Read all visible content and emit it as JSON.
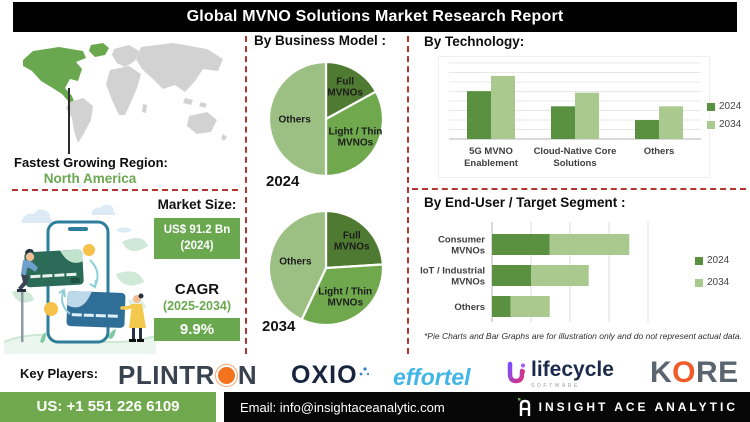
{
  "title": "Global MVNO Solutions Market Research Report",
  "left_panel": {
    "fastest_growing_label": "Fastest Growing Region:",
    "fastest_growing_value": "North America",
    "market_size": {
      "label": "Market Size:",
      "value": "US$ 91.2 Bn",
      "year": "(2024)"
    },
    "cagr": {
      "label": "CAGR",
      "period": "(2025-2034)",
      "value": "9.9%"
    }
  },
  "sections": {
    "business_model_heading": "By Business Model :",
    "technology_heading": "By Technology:",
    "end_user_heading": "By End-User / Target Segment :",
    "footnote": "*Pie Charts and Bar Graphs are for illustration only and do not represent actual data."
  },
  "chart_data": [
    {
      "id": "business_model_2024",
      "type": "pie",
      "title": "2024",
      "labels": [
        "Full MVNOs",
        "Light / Thin MVNOs",
        "Others"
      ],
      "label_lines": [
        [
          "Full",
          "MVNOs"
        ],
        [
          "Light / Thin",
          "MVNOs"
        ],
        [
          "Others"
        ]
      ],
      "values": [
        17,
        33,
        50
      ],
      "colors": [
        "#4e7a31",
        "#70a84e",
        "#9cc083"
      ]
    },
    {
      "id": "business_model_2034",
      "type": "pie",
      "title": "2034",
      "labels": [
        "Full MVNOs",
        "Light / Thin MVNOs",
        "Others"
      ],
      "label_lines": [
        [
          "Full",
          "MVNOs"
        ],
        [
          "Light / Thin",
          "MVNOs"
        ],
        [
          "Others"
        ]
      ],
      "values": [
        24,
        33,
        43
      ],
      "colors": [
        "#4e7a31",
        "#70a84e",
        "#9cc083"
      ]
    },
    {
      "id": "technology",
      "type": "bar",
      "title": "By Technology:",
      "categories": [
        "5G MVNO Enablement",
        "Cloud-Native Core Solutions",
        "Others"
      ],
      "category_lines": [
        [
          "5G MVNO",
          "Enablement"
        ],
        [
          "Cloud-Native Core",
          "Solutions"
        ],
        [
          "Others"
        ]
      ],
      "series": [
        {
          "name": "2024",
          "color": "#5a9140",
          "values": [
            63,
            43,
            25
          ]
        },
        {
          "name": "2034",
          "color": "#a9c98f",
          "values": [
            83,
            61,
            43
          ]
        }
      ],
      "ylim": [
        0,
        100
      ],
      "grid": true,
      "legend_position": "right"
    },
    {
      "id": "end_user",
      "type": "bar",
      "orientation": "horizontal_stacked",
      "title": "By End-User / Target Segment :",
      "categories": [
        "Consumer MVNOs",
        "IoT / Industrial MVNOs",
        "Others"
      ],
      "category_lines": [
        [
          "Consumer",
          "MVNOs"
        ],
        [
          "IoT / Industrial",
          "MVNOs"
        ],
        [
          "Others"
        ]
      ],
      "series": [
        {
          "name": "2024",
          "color": "#5a9140",
          "values": [
            37,
            25,
            12
          ]
        },
        {
          "name": "2034",
          "color": "#a9c98f",
          "values": [
            51,
            37,
            25
          ]
        }
      ],
      "xlim": [
        0,
        100
      ],
      "grid": true,
      "legend_position": "right"
    }
  ],
  "key_players": {
    "label": "Key Players:",
    "plintron": {
      "name": "PLINTRON",
      "prefix": "PLINTR",
      "suffix": "N"
    },
    "oxio": {
      "name": "OXIO"
    },
    "effortel": {
      "name": "effortel"
    },
    "lifecycle": {
      "name": "lifecycle",
      "sub": "SOFTWARE"
    },
    "kore": {
      "name": "KORE",
      "k": "K",
      "o": "O",
      "re": "RE"
    }
  },
  "footer": {
    "phone": "US: +1 551 226 6109",
    "email": "Email: info@insightaceanalytic.com",
    "brand": "INSIGHT ACE ANALYTIC"
  },
  "colors": {
    "highlight_green": "#6aa84f",
    "divider_red": "#b23530",
    "title_bg": "#000000"
  }
}
